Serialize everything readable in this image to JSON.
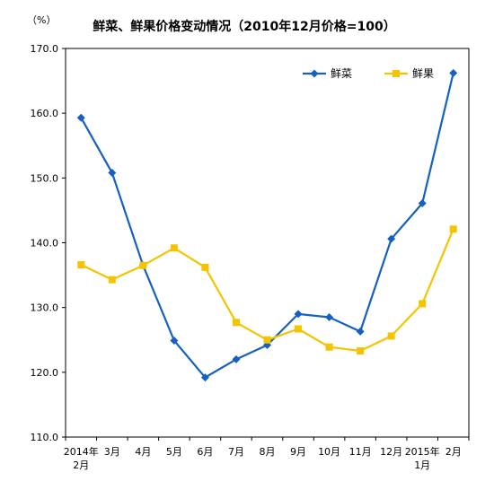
{
  "chart_data": {
    "type": "line",
    "title": "鲜菜、鲜果价格变动情况（2010年12月价格=100）",
    "unit": "（%）",
    "categories": [
      [
        "2014年",
        "2月"
      ],
      [
        "3月"
      ],
      [
        "4月"
      ],
      [
        "5月"
      ],
      [
        "6月"
      ],
      [
        "7月"
      ],
      [
        "8月"
      ],
      [
        "9月"
      ],
      [
        "10月"
      ],
      [
        "11月"
      ],
      [
        "12月"
      ],
      [
        "2015年",
        "1月"
      ],
      [
        "2月"
      ]
    ],
    "y_ticks": [
      "110.0",
      "120.0",
      "130.0",
      "140.0",
      "150.0",
      "160.0",
      "170.0"
    ],
    "ylim": [
      110,
      170
    ],
    "series": [
      {
        "name": "鲜菜",
        "color": "#1660C4",
        "marker": "diamond",
        "values": [
          159.3,
          150.8,
          136.5,
          124.9,
          119.2,
          122.0,
          124.2,
          129.0,
          128.5,
          126.3,
          140.6,
          146.1,
          166.2
        ]
      },
      {
        "name": "鲜果",
        "color": "#F5C400",
        "marker": "square",
        "values": [
          136.6,
          134.3,
          136.5,
          139.2,
          136.2,
          127.7,
          125.0,
          126.7,
          123.9,
          123.3,
          125.6,
          130.6,
          142.1
        ]
      }
    ],
    "legend_position": "top-right",
    "grid": false
  }
}
